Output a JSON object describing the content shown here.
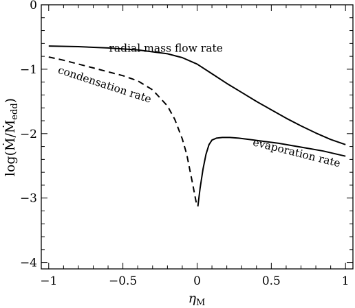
{
  "chart_data": {
    "type": "line",
    "xlabel": "η",
    "xlabel_sub": "M",
    "ylabel": "log(Ṁ/Ṁ",
    "ylabel_sub": "edd",
    "ylabel_close": ")",
    "xlim": [
      -1.05,
      1.05
    ],
    "ylim": [
      -4.1,
      0
    ],
    "x_ticks": [
      -1,
      -0.5,
      0,
      0.5,
      1
    ],
    "x_tick_labels": [
      "−1",
      "−0.5",
      "0",
      "0.5",
      "1"
    ],
    "y_ticks": [
      0,
      -1,
      -2,
      -3,
      -4
    ],
    "y_tick_labels": [
      "0",
      "−1",
      "−2",
      "−3",
      "−4"
    ],
    "grid": false,
    "series": [
      {
        "name": "radial mass flow rate",
        "style": "solid",
        "x": [
          -1,
          -0.8,
          -0.6,
          -0.4,
          -0.2,
          -0.1,
          0,
          0.1,
          0.2,
          0.3,
          0.4,
          0.5,
          0.6,
          0.7,
          0.8,
          0.9,
          1.0
        ],
        "y": [
          -0.64,
          -0.65,
          -0.67,
          -0.7,
          -0.76,
          -0.82,
          -0.92,
          -1.07,
          -1.22,
          -1.36,
          -1.5,
          -1.63,
          -1.76,
          -1.88,
          -1.99,
          -2.09,
          -2.17
        ]
      },
      {
        "name": "condensation rate",
        "style": "dashed",
        "x": [
          -1,
          -0.9,
          -0.8,
          -0.7,
          -0.6,
          -0.5,
          -0.4,
          -0.3,
          -0.2,
          -0.15,
          -0.1,
          -0.07,
          -0.05,
          -0.03,
          -0.01,
          0
        ],
        "y": [
          -0.81,
          -0.86,
          -0.92,
          -0.98,
          -1.04,
          -1.1,
          -1.18,
          -1.32,
          -1.57,
          -1.78,
          -2.08,
          -2.32,
          -2.55,
          -2.78,
          -3.02,
          -3.13
        ]
      },
      {
        "name": "evaporation rate",
        "style": "solid",
        "x": [
          0.005,
          0.02,
          0.04,
          0.06,
          0.08,
          0.1,
          0.13,
          0.17,
          0.22,
          0.28,
          0.35,
          0.45,
          0.55,
          0.65,
          0.75,
          0.85,
          1.0
        ],
        "y": [
          -3.13,
          -2.85,
          -2.55,
          -2.32,
          -2.17,
          -2.1,
          -2.07,
          -2.06,
          -2.06,
          -2.07,
          -2.09,
          -2.12,
          -2.15,
          -2.19,
          -2.23,
          -2.27,
          -2.35
        ]
      }
    ],
    "annotations": [
      {
        "text": "radial mass flow rate",
        "x": -0.21,
        "y": -0.73,
        "rotate": 0
      },
      {
        "text": "condensation rate",
        "x": -0.63,
        "y": -1.29,
        "rotate": 18
      },
      {
        "text": "evaporation rate",
        "x": 0.665,
        "y": -2.35,
        "rotate": 14
      }
    ]
  }
}
